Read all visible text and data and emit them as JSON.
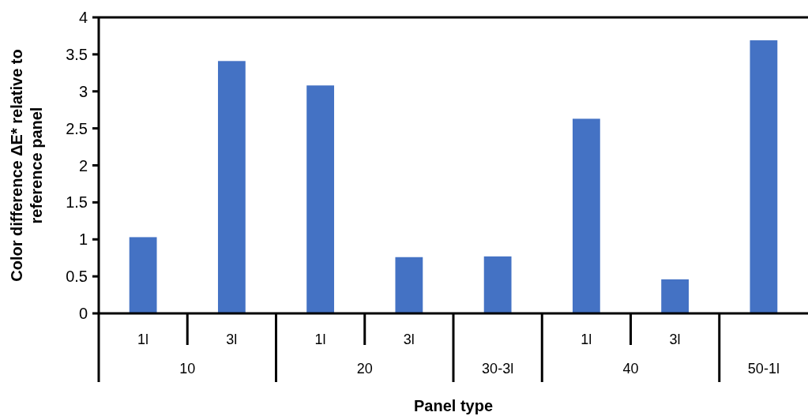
{
  "chart_data": {
    "type": "bar",
    "xlabel": "Panel type",
    "ylabel": "Color difference ΔE* relative to reference panel",
    "categories": [
      "1l",
      "3l",
      "1l",
      "3l",
      null,
      "1l",
      "3l",
      null
    ],
    "annotations": [
      "10",
      "20",
      "30-3l",
      "40",
      "50-1l"
    ],
    "values": [
      1.03,
      3.41,
      3.08,
      0.76,
      0.77,
      2.63,
      0.46,
      3.69
    ],
    "color": "#4472c4",
    "ylim": [
      0,
      4
    ],
    "yticks": [
      0,
      0.5,
      1,
      1.5,
      2,
      2.5,
      3,
      3.5,
      4
    ],
    "grid": false
  }
}
